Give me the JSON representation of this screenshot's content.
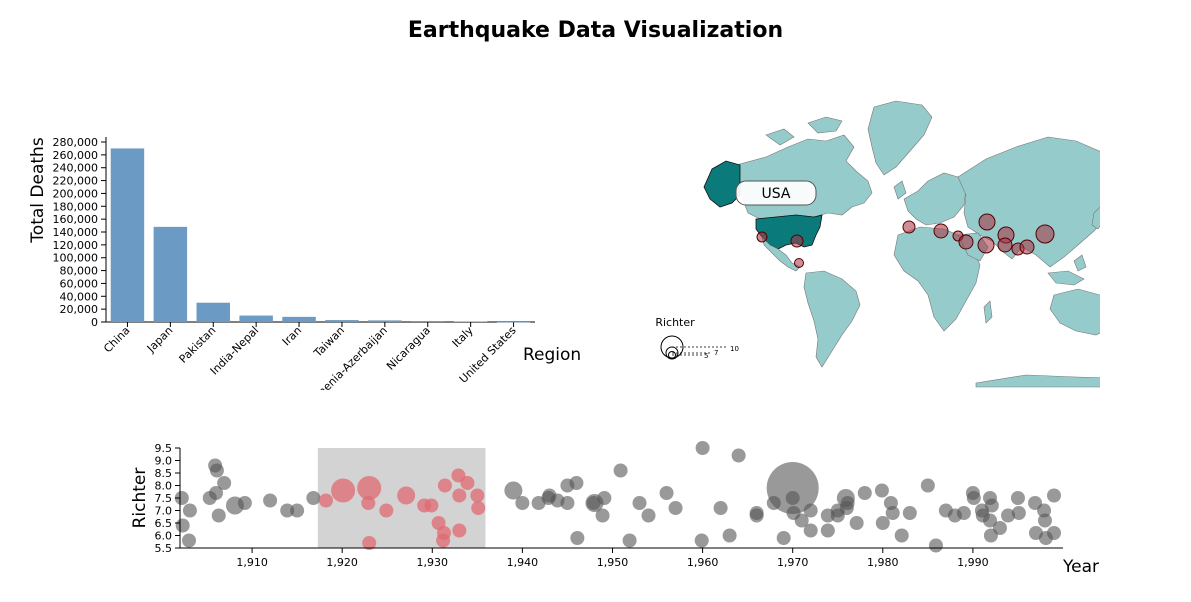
{
  "title": "Earthquake Data Visualization",
  "chart_data": [
    {
      "type": "bar",
      "xlabel": "Region",
      "ylabel": "Total Deaths",
      "ylim": [
        0,
        280000
      ],
      "yticks": [
        0,
        20000,
        40000,
        60000,
        80000,
        100000,
        120000,
        140000,
        160000,
        180000,
        200000,
        220000,
        240000,
        260000,
        280000
      ],
      "ytick_labels": [
        "0",
        "20,000",
        "40,000",
        "60,000",
        "80,000",
        "100,000",
        "120,000",
        "140,000",
        "160,000",
        "180,000",
        "200,000",
        "220,000",
        "240,000",
        "260,000",
        "280,000"
      ],
      "categories": [
        "China",
        "Japan",
        "Pakistan",
        "India-Nepal",
        "Iran",
        "Taiwan",
        "Armenia-Azerbaijan",
        "Nicaragua",
        "Italy",
        "United States"
      ],
      "values": [
        270000,
        148000,
        30000,
        10000,
        8000,
        3000,
        2500,
        1500,
        800,
        100
      ],
      "bar_color": "#6b9bc4"
    },
    {
      "type": "map",
      "tooltip": "USA",
      "highlight_region": "USA",
      "highlight_color": "#0b7a7a",
      "land_color": "#96cbcb",
      "marker_color": "#a83040",
      "legend_title": "Richter",
      "legend_values": [
        "10",
        "7",
        "5"
      ]
    },
    {
      "type": "scatter",
      "xlabel": "Year",
      "ylabel": "Richter",
      "xlim": [
        1902,
        2000
      ],
      "ylim": [
        5.5,
        9.5
      ],
      "xticks": [
        1910,
        1920,
        1930,
        1940,
        1950,
        1960,
        1970,
        1980,
        1990
      ],
      "xtick_labels": [
        "1,910",
        "1,920",
        "1,930",
        "1,940",
        "1,950",
        "1,960",
        "1,970",
        "1,980",
        "1,990"
      ],
      "yticks": [
        5.5,
        6.0,
        6.5,
        7.0,
        7.5,
        8.0,
        8.5,
        9.0,
        9.5
      ],
      "ytick_labels": [
        "5.5",
        "6.0",
        "6.5",
        "7.0",
        "7.5",
        "8.0",
        "8.5",
        "9.0",
        "9.5"
      ],
      "brush": [
        1917.3,
        1935.9
      ],
      "point_color": "#555555",
      "selected_color": "#e06a72",
      "points": [
        [
          1902.2,
          7.5,
          1
        ],
        [
          1902.3,
          6.4,
          1
        ],
        [
          1903.1,
          7.0,
          1
        ],
        [
          1903.0,
          5.8,
          1
        ],
        [
          1905.3,
          7.5,
          1
        ],
        [
          1905.9,
          8.8,
          1
        ],
        [
          1906.1,
          8.6,
          1
        ],
        [
          1906.0,
          7.7,
          1
        ],
        [
          1906.3,
          6.8,
          1
        ],
        [
          1906.9,
          8.1,
          1
        ],
        [
          1908.1,
          7.2,
          2
        ],
        [
          1909.2,
          7.3,
          1
        ],
        [
          1912.0,
          7.4,
          1
        ],
        [
          1913.9,
          7.0,
          1
        ],
        [
          1915.0,
          7.0,
          1
        ],
        [
          1916.8,
          7.5,
          1
        ],
        [
          1918.2,
          7.4,
          1
        ],
        [
          1920.1,
          7.8,
          3
        ],
        [
          1923.0,
          7.9,
          3
        ],
        [
          1922.9,
          7.3,
          1
        ],
        [
          1923.0,
          5.7,
          1
        ],
        [
          1924.9,
          7.0,
          1
        ],
        [
          1927.1,
          7.6,
          2
        ],
        [
          1929.1,
          7.2,
          1
        ],
        [
          1929.9,
          7.2,
          1
        ],
        [
          1930.7,
          6.5,
          1
        ],
        [
          1931.2,
          5.8,
          1
        ],
        [
          1931.3,
          6.1,
          1
        ],
        [
          1931.4,
          8.0,
          1
        ],
        [
          1932.9,
          8.4,
          1
        ],
        [
          1933.0,
          7.6,
          1
        ],
        [
          1933.0,
          6.2,
          1
        ],
        [
          1933.9,
          8.1,
          1
        ],
        [
          1935.0,
          7.6,
          1
        ],
        [
          1935.1,
          7.1,
          1
        ],
        [
          1939.0,
          7.8,
          2
        ],
        [
          1940.0,
          7.3,
          1
        ],
        [
          1941.8,
          7.3,
          1
        ],
        [
          1942.9,
          7.5,
          1
        ],
        [
          1943.0,
          7.6,
          1
        ],
        [
          1943.9,
          7.4,
          1
        ],
        [
          1945.0,
          8.0,
          1
        ],
        [
          1945.0,
          7.3,
          1
        ],
        [
          1946.1,
          5.9,
          1
        ],
        [
          1946.0,
          8.1,
          1
        ],
        [
          1948.0,
          7.3,
          2
        ],
        [
          1947.9,
          7.3,
          1
        ],
        [
          1948.9,
          6.8,
          1
        ],
        [
          1949.1,
          7.5,
          1
        ],
        [
          1950.9,
          8.6,
          1
        ],
        [
          1951.9,
          5.8,
          1
        ],
        [
          1953.0,
          7.3,
          1
        ],
        [
          1954.0,
          6.8,
          1
        ],
        [
          1956.0,
          7.7,
          1
        ],
        [
          1957.0,
          7.1,
          1
        ],
        [
          1959.9,
          5.8,
          1
        ],
        [
          1960.0,
          9.5,
          1
        ],
        [
          1962.0,
          7.1,
          1
        ],
        [
          1963.0,
          6.0,
          1
        ],
        [
          1964.0,
          9.2,
          1
        ],
        [
          1966.0,
          6.9,
          1
        ],
        [
          1966.0,
          6.8,
          1
        ],
        [
          1967.9,
          7.3,
          1
        ],
        [
          1969.0,
          5.9,
          1
        ],
        [
          1970.0,
          7.9,
          4
        ],
        [
          1970.0,
          7.5,
          1
        ],
        [
          1970.1,
          6.9,
          1
        ],
        [
          1971.0,
          6.6,
          1
        ],
        [
          1972.0,
          6.2,
          1
        ],
        [
          1972.0,
          7.0,
          1
        ],
        [
          1973.9,
          6.8,
          1
        ],
        [
          1973.9,
          6.2,
          1
        ],
        [
          1975.0,
          6.8,
          1
        ],
        [
          1975.0,
          7.0,
          1
        ],
        [
          1975.9,
          7.5,
          2
        ],
        [
          1976.1,
          7.3,
          1
        ],
        [
          1976.0,
          7.1,
          1
        ],
        [
          1977.1,
          6.5,
          1
        ],
        [
          1978.0,
          7.7,
          1
        ],
        [
          1979.9,
          7.8,
          1
        ],
        [
          1980.0,
          6.5,
          1
        ],
        [
          1980.9,
          7.3,
          1
        ],
        [
          1981.1,
          6.9,
          1
        ],
        [
          1982.1,
          6.0,
          1
        ],
        [
          1983.0,
          6.9,
          1
        ],
        [
          1985.0,
          8.0,
          1
        ],
        [
          1985.9,
          5.6,
          1
        ],
        [
          1987.0,
          7.0,
          1
        ],
        [
          1988.0,
          6.8,
          1
        ],
        [
          1989.0,
          6.9,
          1
        ],
        [
          1990.0,
          7.7,
          1
        ],
        [
          1990.1,
          7.5,
          1
        ],
        [
          1991.0,
          7.0,
          1
        ],
        [
          1991.1,
          6.8,
          1
        ],
        [
          1991.9,
          7.5,
          1
        ],
        [
          1991.9,
          6.6,
          1
        ],
        [
          1992.1,
          7.2,
          1
        ],
        [
          1992.0,
          6.0,
          1
        ],
        [
          1993.0,
          6.3,
          1
        ],
        [
          1993.9,
          6.8,
          1
        ],
        [
          1995.0,
          7.5,
          1
        ],
        [
          1995.1,
          6.9,
          1
        ],
        [
          1996.9,
          7.3,
          1
        ],
        [
          1997.0,
          6.1,
          1
        ],
        [
          1997.9,
          7.0,
          1
        ],
        [
          1998.0,
          6.6,
          1
        ],
        [
          1998.1,
          5.9,
          1
        ],
        [
          1999.0,
          7.6,
          1
        ],
        [
          1999.0,
          6.1,
          1
        ]
      ]
    }
  ]
}
